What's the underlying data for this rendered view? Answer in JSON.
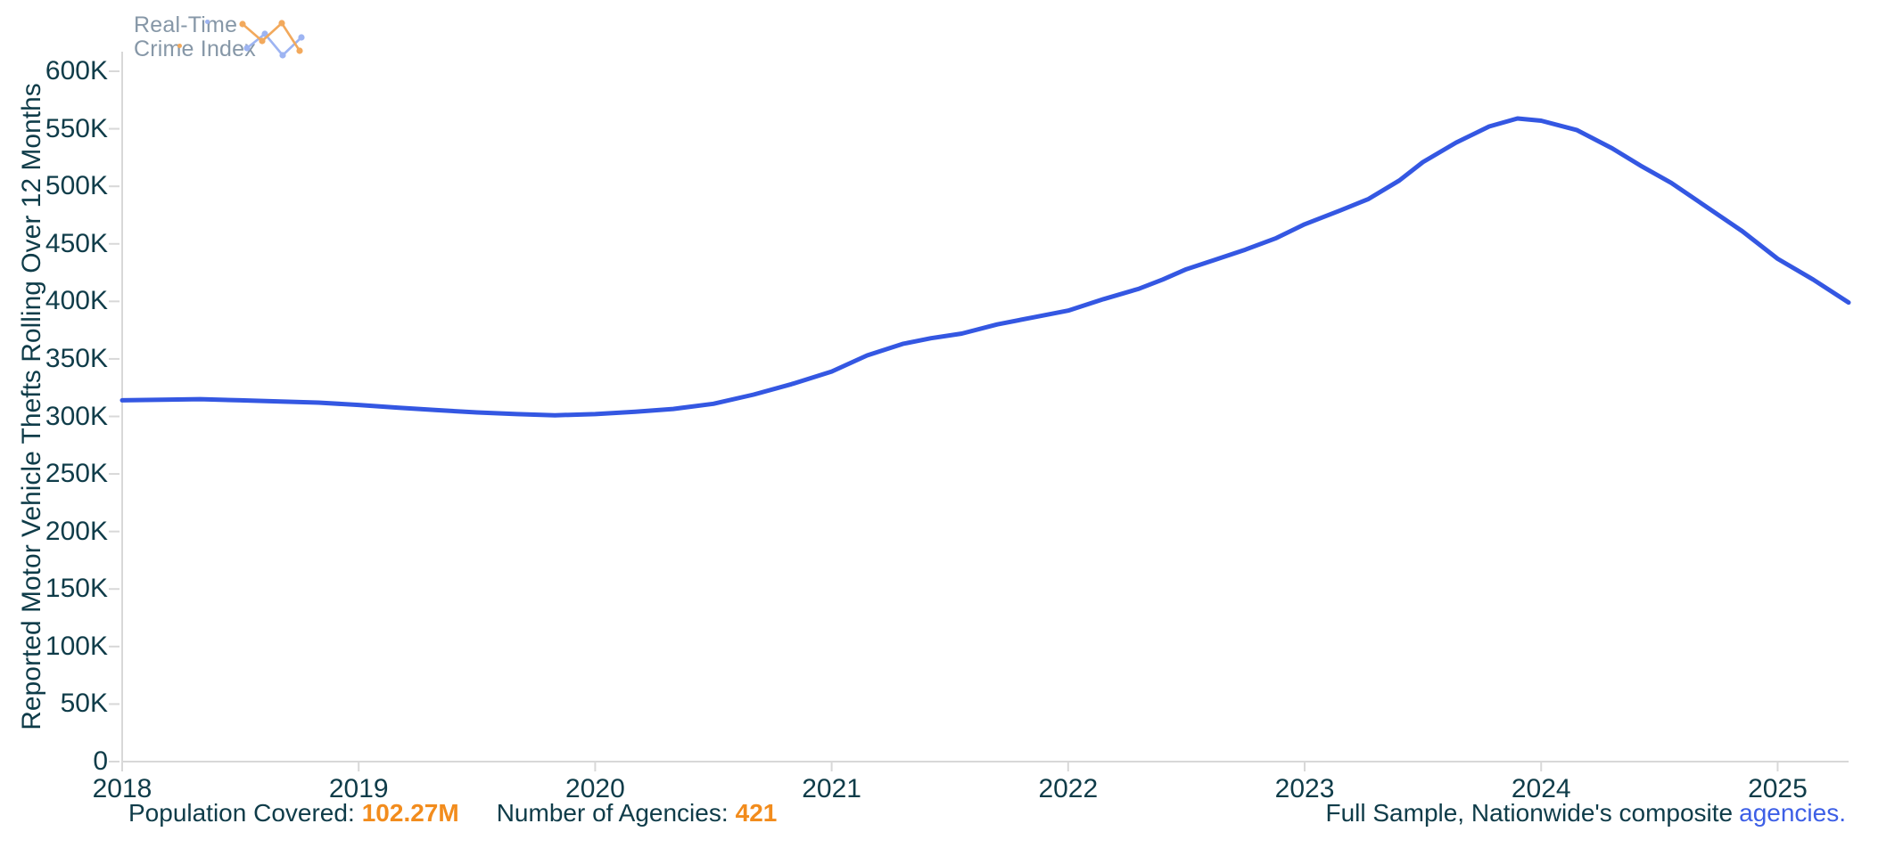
{
  "logo": {
    "line1": "Real-Time",
    "line2": "Crime Index"
  },
  "y_axis_title": "Reported Motor Vehicle Thefts Rolling Over 12 Months",
  "footer": {
    "population_label": "Population Covered:",
    "population_value": "102.27M",
    "agencies_label": "Number of Agencies:",
    "agencies_value": "421",
    "sample_text": "Full Sample, Nationwide's composite",
    "sample_link": "agencies."
  },
  "colors": {
    "line_blue": "#3457E2",
    "accent_orange": "#F28C1D",
    "link_blue": "#3D5FE6",
    "text_teal": "#0F3C49",
    "axis_gray": "#D8D8D8",
    "logo_gray": "#8697A7",
    "logo_icon_orange": "#F2A95C",
    "logo_icon_blue": "#9DB4F2"
  },
  "chart_data": {
    "type": "line",
    "title": "",
    "xlabel": "",
    "ylabel": "Reported Motor Vehicle Thefts Rolling Over 12 Months",
    "grid": false,
    "legend_position": "none",
    "x_range": [
      2018,
      2025.3
    ],
    "y_range": [
      0,
      600000
    ],
    "x_ticks": [
      "2018",
      "2019",
      "2020",
      "2021",
      "2022",
      "2023",
      "2024",
      "2025"
    ],
    "x_tick_values": [
      2018,
      2019,
      2020,
      2021,
      2022,
      2023,
      2024,
      2025
    ],
    "y_ticks": [
      "0",
      "50K",
      "100K",
      "150K",
      "200K",
      "250K",
      "300K",
      "350K",
      "400K",
      "450K",
      "500K",
      "550K",
      "600K"
    ],
    "y_tick_values": [
      0,
      50000,
      100000,
      150000,
      200000,
      250000,
      300000,
      350000,
      400000,
      450000,
      500000,
      550000,
      600000
    ],
    "series": [
      {
        "name": "Reported motor vehicle thefts, rolling 12 months",
        "color": "#3457E2",
        "points": [
          [
            2018.0,
            314000
          ],
          [
            2018.17,
            314500
          ],
          [
            2018.33,
            315000
          ],
          [
            2018.5,
            314000
          ],
          [
            2018.67,
            313000
          ],
          [
            2018.83,
            312000
          ],
          [
            2019.0,
            310000
          ],
          [
            2019.17,
            307500
          ],
          [
            2019.33,
            305500
          ],
          [
            2019.5,
            303500
          ],
          [
            2019.67,
            302000
          ],
          [
            2019.83,
            301000
          ],
          [
            2020.0,
            302000
          ],
          [
            2020.17,
            304000
          ],
          [
            2020.33,
            306500
          ],
          [
            2020.5,
            311000
          ],
          [
            2020.67,
            319000
          ],
          [
            2020.83,
            328000
          ],
          [
            2021.0,
            339000
          ],
          [
            2021.15,
            353000
          ],
          [
            2021.3,
            363000
          ],
          [
            2021.42,
            368000
          ],
          [
            2021.55,
            372000
          ],
          [
            2021.7,
            380000
          ],
          [
            2021.85,
            386000
          ],
          [
            2022.0,
            392000
          ],
          [
            2022.15,
            402000
          ],
          [
            2022.3,
            411000
          ],
          [
            2022.4,
            419000
          ],
          [
            2022.5,
            428000
          ],
          [
            2022.62,
            436000
          ],
          [
            2022.75,
            445000
          ],
          [
            2022.88,
            455000
          ],
          [
            2023.0,
            467000
          ],
          [
            2023.15,
            479000
          ],
          [
            2023.27,
            489000
          ],
          [
            2023.4,
            505000
          ],
          [
            2023.5,
            521000
          ],
          [
            2023.64,
            538000
          ],
          [
            2023.78,
            552000
          ],
          [
            2023.9,
            559000
          ],
          [
            2024.0,
            557000
          ],
          [
            2024.15,
            549000
          ],
          [
            2024.3,
            533000
          ],
          [
            2024.42,
            518000
          ],
          [
            2024.55,
            503000
          ],
          [
            2024.7,
            482000
          ],
          [
            2024.85,
            461000
          ],
          [
            2025.0,
            437000
          ],
          [
            2025.15,
            419000
          ],
          [
            2025.3,
            399000
          ]
        ]
      }
    ]
  }
}
